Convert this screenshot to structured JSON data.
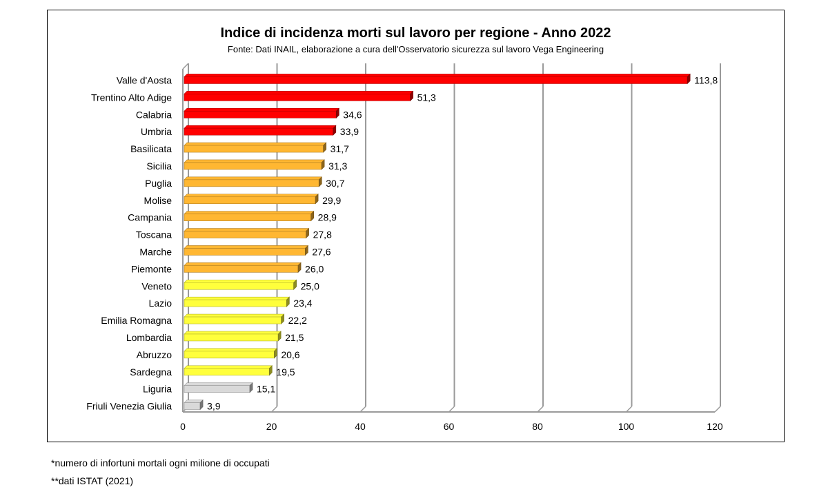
{
  "chart_data": {
    "type": "bar",
    "orientation": "horizontal",
    "title": "Indice di incidenza morti sul lavoro per regione - Anno 2022",
    "subtitle": "Fonte: Dati INAIL, elaborazione a cura dell'Osservatorio sicurezza sul lavoro Vega Engineering",
    "xlim": [
      0,
      120
    ],
    "xticks": [
      "0",
      "20",
      "40",
      "60",
      "80",
      "100",
      "120"
    ],
    "xtick_values": [
      0,
      20,
      40,
      60,
      80,
      100,
      120
    ],
    "grid": "vertical",
    "bars": [
      {
        "label": "Valle d'Aosta",
        "value": 113.8,
        "value_label": "113,8",
        "color": "#ff0000"
      },
      {
        "label": "Trentino Alto Adige",
        "value": 51.3,
        "value_label": "51,3",
        "color": "#ff0000"
      },
      {
        "label": "Calabria",
        "value": 34.6,
        "value_label": "34,6",
        "color": "#ff0000"
      },
      {
        "label": "Umbria",
        "value": 33.9,
        "value_label": "33,9",
        "color": "#ff0000"
      },
      {
        "label": "Basilicata",
        "value": 31.7,
        "value_label": "31,7",
        "color": "#ffb732"
      },
      {
        "label": "Sicilia",
        "value": 31.3,
        "value_label": "31,3",
        "color": "#ffb732"
      },
      {
        "label": "Puglia",
        "value": 30.7,
        "value_label": "30,7",
        "color": "#ffb732"
      },
      {
        "label": "Molise",
        "value": 29.9,
        "value_label": "29,9",
        "color": "#ffb732"
      },
      {
        "label": "Campania",
        "value": 28.9,
        "value_label": "28,9",
        "color": "#ffb732"
      },
      {
        "label": "Toscana",
        "value": 27.8,
        "value_label": "27,8",
        "color": "#ffb732"
      },
      {
        "label": "Marche",
        "value": 27.6,
        "value_label": "27,6",
        "color": "#ffb732"
      },
      {
        "label": "Piemonte",
        "value": 26.0,
        "value_label": "26,0",
        "color": "#ffb732"
      },
      {
        "label": "Veneto",
        "value": 25.0,
        "value_label": "25,0",
        "color": "#ffff3c"
      },
      {
        "label": "Lazio",
        "value": 23.4,
        "value_label": "23,4",
        "color": "#ffff3c"
      },
      {
        "label": "Emilia Romagna",
        "value": 22.2,
        "value_label": "22,2",
        "color": "#ffff3c"
      },
      {
        "label": "Lombardia",
        "value": 21.5,
        "value_label": "21,5",
        "color": "#ffff3c"
      },
      {
        "label": "Abruzzo",
        "value": 20.6,
        "value_label": "20,6",
        "color": "#ffff3c"
      },
      {
        "label": "Sardegna",
        "value": 19.5,
        "value_label": "19,5",
        "color": "#ffff3c"
      },
      {
        "label": "Liguria",
        "value": 15.1,
        "value_label": "15,1",
        "color": "#d9d9d9"
      },
      {
        "label": "Friuli Venezia Giulia",
        "value": 3.9,
        "value_label": "3,9",
        "color": "#d9d9d9"
      }
    ]
  },
  "footnotes": [
    "*numero di infortuni mortali ogni milione di occupati",
    "**dati ISTAT (2021)"
  ]
}
